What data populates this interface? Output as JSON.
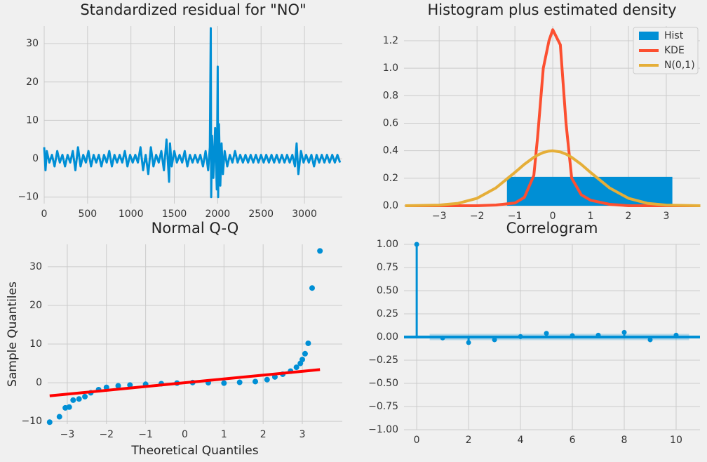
{
  "chart_data": [
    {
      "type": "line",
      "title": "Standardized residual for \"NO\"",
      "color": "#008fd5",
      "grid": true,
      "x": [
        0,
        15,
        30,
        60,
        90,
        120,
        150,
        180,
        210,
        240,
        270,
        300,
        330,
        360,
        390,
        420,
        450,
        480,
        510,
        540,
        570,
        600,
        630,
        660,
        690,
        720,
        750,
        780,
        810,
        840,
        870,
        900,
        930,
        960,
        990,
        1020,
        1050,
        1080,
        1110,
        1140,
        1170,
        1200,
        1230,
        1260,
        1290,
        1320,
        1350,
        1380,
        1410,
        1440,
        1450,
        1470,
        1500,
        1530,
        1560,
        1590,
        1620,
        1650,
        1680,
        1710,
        1740,
        1770,
        1800,
        1830,
        1860,
        1890,
        1910,
        1920,
        1925,
        1935,
        1950,
        1970,
        1990,
        2000,
        2005,
        2015,
        2030,
        2045,
        2060,
        2080,
        2110,
        2140,
        2170,
        2200,
        2230,
        2260,
        2290,
        2320,
        2350,
        2380,
        2410,
        2440,
        2470,
        2500,
        2530,
        2560,
        2590,
        2620,
        2650,
        2680,
        2710,
        2740,
        2770,
        2800,
        2830,
        2860,
        2890,
        2910,
        2930,
        2960,
        2990,
        3020,
        3050,
        3080,
        3110,
        3140,
        3170,
        3200,
        3230,
        3260,
        3290,
        3320,
        3350,
        3380,
        3410
      ],
      "values": [
        3,
        -3,
        2,
        -1,
        1,
        -2,
        2,
        -1,
        1,
        -2,
        1,
        -1,
        2,
        -3,
        3,
        -2,
        1,
        -1,
        2,
        -2,
        1,
        -1,
        1,
        -2,
        1,
        -1,
        2,
        -2,
        1,
        -1,
        1,
        -1,
        2,
        -2,
        1,
        -1,
        1,
        -1,
        3,
        -3,
        1,
        -4,
        3,
        -2,
        1,
        -1,
        2,
        -3,
        5,
        -6,
        4,
        -2,
        2,
        -1,
        1,
        -1,
        2,
        -2,
        1,
        -1,
        1,
        -1,
        1,
        -2,
        2,
        -3,
        3,
        34,
        -10,
        6,
        -5,
        8,
        -8,
        24,
        -10,
        9,
        -7,
        4,
        -4,
        2,
        -2,
        1,
        -1,
        2,
        -1,
        1,
        -1,
        1,
        -1,
        1,
        -1,
        1,
        -1,
        1,
        -1,
        1,
        -1,
        1,
        -1,
        1,
        -1,
        1,
        -1,
        1,
        -1,
        1,
        -2,
        4,
        -4,
        2,
        -1,
        1,
        -1,
        1,
        -2,
        1,
        -1,
        1,
        -1,
        1,
        -1,
        1,
        -1,
        1,
        -1
      ],
      "xlim": [
        0,
        3436
      ],
      "xticks": [
        0,
        500,
        1000,
        1500,
        2000,
        2500,
        3000
      ],
      "ylim": [
        -11.7,
        34.6
      ],
      "yticks": [
        {
          "value": -10,
          "label": "−10"
        },
        0,
        10,
        20,
        30
      ]
    },
    {
      "type": "histogram",
      "title": "Histogram plus estimated density",
      "grid": true,
      "legend": "upper right",
      "x": [
        -3.9,
        -3,
        -2.5,
        -2,
        -1.5,
        -1,
        -0.75,
        -0.5,
        -0.4,
        -0.25,
        -0.1,
        0,
        0.2,
        0.35,
        0.5,
        0.75,
        1,
        1.5,
        2,
        2.5,
        3,
        3.9
      ],
      "series": [
        {
          "name": "Hist",
          "type": "histogram",
          "color": "#008fd5",
          "bins": [
            -1.21,
            3.16
          ],
          "values": [
            0.21
          ]
        },
        {
          "name": "KDE",
          "type": "line",
          "color": "#fc4f30",
          "values": [
            0,
            0,
            0,
            0,
            0.005,
            0.02,
            0.06,
            0.22,
            0.5,
            1.0,
            1.2,
            1.28,
            1.17,
            0.6,
            0.2,
            0.08,
            0.04,
            0.01,
            0,
            0,
            0,
            0
          ]
        },
        {
          "name": "N(0,1)",
          "type": "line",
          "color": "#e5ae38",
          "values": [
            0.0002,
            0.0044,
            0.0175,
            0.054,
            0.1295,
            0.242,
            0.301,
            0.352,
            0.368,
            0.387,
            0.397,
            0.399,
            0.391,
            0.375,
            0.352,
            0.301,
            0.242,
            0.1295,
            0.054,
            0.0175,
            0.0044,
            0.0002
          ]
        }
      ],
      "xlim": [
        -3.93,
        3.89
      ],
      "xticks": [
        {
          "value": -3,
          "label": "−3"
        },
        {
          "value": -2,
          "label": "−2"
        },
        {
          "value": -1,
          "label": "−1"
        },
        0,
        1,
        2,
        3
      ],
      "ylim": [
        0,
        1.307
      ],
      "yticks": [
        {
          "value": 0,
          "label": "0.0"
        },
        0.2,
        0.4,
        0.6,
        0.8,
        {
          "value": 1,
          "label": "1.0"
        },
        1.2
      ]
    },
    {
      "type": "scatter",
      "title": "Normal Q-Q",
      "xlabel": "Theoretical Quantiles",
      "ylabel": "Sample Quantiles",
      "color": "#008fd5",
      "grid": true,
      "x": [
        -3.45,
        -3.2,
        -3.05,
        -2.95,
        -2.85,
        -2.7,
        -2.55,
        -2.4,
        -2.2,
        -2.0,
        -1.7,
        -1.4,
        -1.0,
        -0.6,
        -0.2,
        0.2,
        0.6,
        1.0,
        1.4,
        1.8,
        2.1,
        2.3,
        2.5,
        2.7,
        2.85,
        2.95,
        3.0,
        3.07,
        3.15,
        3.25,
        3.45
      ],
      "values": [
        -10.2,
        -8.8,
        -6.5,
        -6.3,
        -4.5,
        -4.2,
        -3.6,
        -2.6,
        -1.8,
        -1.2,
        -0.8,
        -0.6,
        -0.4,
        -0.25,
        -0.1,
        0.05,
        0,
        -0.1,
        0.1,
        0.3,
        0.8,
        1.5,
        2.2,
        3.0,
        4.0,
        5.0,
        6.0,
        7.5,
        10.2,
        24.5,
        34.1
      ],
      "reference_line": {
        "color": "#ff0000",
        "x": [
          -3.45,
          3.45
        ],
        "values": [
          -3.4,
          3.4
        ]
      },
      "xlim": [
        -3.5,
        4.02
      ],
      "xticks": [
        {
          "value": -3,
          "label": "−3"
        },
        {
          "value": -2,
          "label": "−2"
        },
        {
          "value": -1,
          "label": "−1"
        },
        0,
        1,
        2,
        3
      ],
      "ylim": [
        -10.7,
        35.8
      ],
      "yticks": [
        {
          "value": -10,
          "label": "−10"
        },
        0,
        10,
        20,
        30
      ]
    },
    {
      "type": "stem",
      "title": "Correlogram",
      "color": "#008fd5",
      "grid": true,
      "x": [
        0,
        1,
        2,
        3,
        4,
        5,
        6,
        7,
        8,
        9,
        10
      ],
      "values": [
        1,
        -0.01,
        -0.06,
        -0.03,
        0.005,
        0.04,
        0.015,
        0.02,
        0.05,
        -0.03,
        0.02
      ],
      "confidence_band": [
        -0.034,
        0.034
      ],
      "xlim": [
        -0.49,
        10.92
      ],
      "xticks": [
        0,
        2,
        4,
        6,
        8,
        10
      ],
      "ylim": [
        -1,
        1
      ],
      "yticks": [
        {
          "value": -1,
          "label": "−1.00"
        },
        {
          "value": -0.75,
          "label": "−0.75"
        },
        {
          "value": -0.5,
          "label": "−0.50"
        },
        {
          "value": -0.25,
          "label": "−0.25"
        },
        {
          "value": 0,
          "label": "0.00"
        },
        {
          "value": 0.25,
          "label": "0.25"
        },
        {
          "value": 0.5,
          "label": "0.50"
        },
        {
          "value": 0.75,
          "label": "0.75"
        },
        {
          "value": 1,
          "label": "1.00"
        }
      ]
    }
  ]
}
